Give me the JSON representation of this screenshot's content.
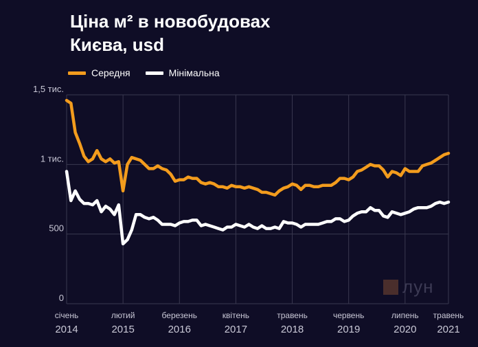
{
  "title_line1": "Ціна м² в новобудовах",
  "title_line2": "Києва, usd",
  "watermark": "лун",
  "colors": {
    "average": "#f39c1d",
    "minimum": "#ffffff",
    "background": "#0f0d26",
    "grid": "#3a3950"
  },
  "chart_data": {
    "type": "line",
    "title": "Ціна м² в новобудовах Києва, usd",
    "y_ticks": [
      {
        "value": 0,
        "label": "0"
      },
      {
        "value": 500,
        "label": "500"
      },
      {
        "value": 1000,
        "label": "1 тис."
      },
      {
        "value": 1500,
        "label": "1,5 тис."
      }
    ],
    "ylim": [
      0,
      1500
    ],
    "x_range": [
      "2014-01",
      "2021-05"
    ],
    "x_ticks": [
      {
        "month": "січень",
        "year": "2014",
        "x": "2014-01"
      },
      {
        "month": "лютий",
        "year": "2015",
        "x": "2015-02"
      },
      {
        "month": "березень",
        "year": "2016",
        "x": "2016-03"
      },
      {
        "month": "квітень",
        "year": "2017",
        "x": "2017-04"
      },
      {
        "month": "травень",
        "year": "2018",
        "x": "2018-05"
      },
      {
        "month": "червень",
        "year": "2019",
        "x": "2019-06"
      },
      {
        "month": "липень",
        "year": "2020",
        "x": "2020-07"
      },
      {
        "month": "травень",
        "year": "2021",
        "x": "2021-05"
      }
    ],
    "grid": true,
    "legend": "top-left",
    "series": [
      {
        "name": "Середня",
        "color": "#f39c1d",
        "points": [
          [
            "2014-01",
            1460
          ],
          [
            "2014-02",
            1440
          ],
          [
            "2014-03",
            1230
          ],
          [
            "2014-04",
            1150
          ],
          [
            "2014-05",
            1060
          ],
          [
            "2014-06",
            1020
          ],
          [
            "2014-07",
            1040
          ],
          [
            "2014-08",
            1100
          ],
          [
            "2014-09",
            1040
          ],
          [
            "2014-10",
            1020
          ],
          [
            "2014-11",
            1040
          ],
          [
            "2014-12",
            1010
          ],
          [
            "2015-01",
            1020
          ],
          [
            "2015-02",
            810
          ],
          [
            "2015-03",
            1000
          ],
          [
            "2015-04",
            1050
          ],
          [
            "2015-05",
            1040
          ],
          [
            "2015-06",
            1030
          ],
          [
            "2015-07",
            1000
          ],
          [
            "2015-08",
            970
          ],
          [
            "2015-09",
            970
          ],
          [
            "2015-10",
            990
          ],
          [
            "2015-11",
            970
          ],
          [
            "2015-12",
            960
          ],
          [
            "2016-01",
            930
          ],
          [
            "2016-02",
            880
          ],
          [
            "2016-03",
            890
          ],
          [
            "2016-04",
            890
          ],
          [
            "2016-05",
            910
          ],
          [
            "2016-06",
            900
          ],
          [
            "2016-07",
            900
          ],
          [
            "2016-08",
            870
          ],
          [
            "2016-09",
            860
          ],
          [
            "2016-10",
            870
          ],
          [
            "2016-11",
            860
          ],
          [
            "2016-12",
            840
          ],
          [
            "2017-01",
            840
          ],
          [
            "2017-02",
            830
          ],
          [
            "2017-03",
            850
          ],
          [
            "2017-04",
            840
          ],
          [
            "2017-05",
            840
          ],
          [
            "2017-06",
            830
          ],
          [
            "2017-07",
            840
          ],
          [
            "2017-08",
            830
          ],
          [
            "2017-09",
            820
          ],
          [
            "2017-10",
            800
          ],
          [
            "2017-11",
            800
          ],
          [
            "2017-12",
            790
          ],
          [
            "2018-01",
            780
          ],
          [
            "2018-02",
            810
          ],
          [
            "2018-03",
            830
          ],
          [
            "2018-04",
            840
          ],
          [
            "2018-05",
            860
          ],
          [
            "2018-06",
            850
          ],
          [
            "2018-07",
            820
          ],
          [
            "2018-08",
            850
          ],
          [
            "2018-09",
            850
          ],
          [
            "2018-10",
            840
          ],
          [
            "2018-11",
            840
          ],
          [
            "2018-12",
            850
          ],
          [
            "2019-01",
            850
          ],
          [
            "2019-02",
            850
          ],
          [
            "2019-03",
            870
          ],
          [
            "2019-04",
            900
          ],
          [
            "2019-05",
            900
          ],
          [
            "2019-06",
            890
          ],
          [
            "2019-07",
            910
          ],
          [
            "2019-08",
            950
          ],
          [
            "2019-09",
            960
          ],
          [
            "2019-10",
            980
          ],
          [
            "2019-11",
            1000
          ],
          [
            "2019-12",
            990
          ],
          [
            "2020-01",
            990
          ],
          [
            "2020-02",
            960
          ],
          [
            "2020-03",
            910
          ],
          [
            "2020-04",
            950
          ],
          [
            "2020-05",
            940
          ],
          [
            "2020-06",
            920
          ],
          [
            "2020-07",
            970
          ],
          [
            "2020-08",
            950
          ],
          [
            "2020-09",
            950
          ],
          [
            "2020-10",
            950
          ],
          [
            "2020-11",
            990
          ],
          [
            "2020-12",
            1000
          ],
          [
            "2021-01",
            1010
          ],
          [
            "2021-02",
            1030
          ],
          [
            "2021-03",
            1050
          ],
          [
            "2021-04",
            1070
          ],
          [
            "2021-05",
            1080
          ]
        ]
      },
      {
        "name": "Мінімальна",
        "color": "#ffffff",
        "points": [
          [
            "2014-01",
            950
          ],
          [
            "2014-02",
            740
          ],
          [
            "2014-03",
            810
          ],
          [
            "2014-04",
            750
          ],
          [
            "2014-05",
            720
          ],
          [
            "2014-06",
            720
          ],
          [
            "2014-07",
            710
          ],
          [
            "2014-08",
            740
          ],
          [
            "2014-09",
            660
          ],
          [
            "2014-10",
            700
          ],
          [
            "2014-11",
            680
          ],
          [
            "2014-12",
            640
          ],
          [
            "2015-01",
            710
          ],
          [
            "2015-02",
            430
          ],
          [
            "2015-03",
            460
          ],
          [
            "2015-04",
            530
          ],
          [
            "2015-05",
            640
          ],
          [
            "2015-06",
            640
          ],
          [
            "2015-07",
            620
          ],
          [
            "2015-08",
            610
          ],
          [
            "2015-09",
            620
          ],
          [
            "2015-10",
            600
          ],
          [
            "2015-11",
            570
          ],
          [
            "2015-12",
            570
          ],
          [
            "2016-01",
            570
          ],
          [
            "2016-02",
            560
          ],
          [
            "2016-03",
            580
          ],
          [
            "2016-04",
            590
          ],
          [
            "2016-05",
            590
          ],
          [
            "2016-06",
            600
          ],
          [
            "2016-07",
            600
          ],
          [
            "2016-08",
            560
          ],
          [
            "2016-09",
            570
          ],
          [
            "2016-10",
            560
          ],
          [
            "2016-11",
            550
          ],
          [
            "2016-12",
            540
          ],
          [
            "2017-01",
            530
          ],
          [
            "2017-02",
            550
          ],
          [
            "2017-03",
            550
          ],
          [
            "2017-04",
            570
          ],
          [
            "2017-05",
            560
          ],
          [
            "2017-06",
            550
          ],
          [
            "2017-07",
            570
          ],
          [
            "2017-08",
            550
          ],
          [
            "2017-09",
            540
          ],
          [
            "2017-10",
            560
          ],
          [
            "2017-11",
            540
          ],
          [
            "2017-12",
            540
          ],
          [
            "2018-01",
            550
          ],
          [
            "2018-02",
            540
          ],
          [
            "2018-03",
            590
          ],
          [
            "2018-04",
            580
          ],
          [
            "2018-05",
            580
          ],
          [
            "2018-06",
            570
          ],
          [
            "2018-07",
            550
          ],
          [
            "2018-08",
            570
          ],
          [
            "2018-09",
            570
          ],
          [
            "2018-10",
            570
          ],
          [
            "2018-11",
            570
          ],
          [
            "2018-12",
            580
          ],
          [
            "2019-01",
            590
          ],
          [
            "2019-02",
            590
          ],
          [
            "2019-03",
            610
          ],
          [
            "2019-04",
            610
          ],
          [
            "2019-05",
            590
          ],
          [
            "2019-06",
            600
          ],
          [
            "2019-07",
            630
          ],
          [
            "2019-08",
            650
          ],
          [
            "2019-09",
            660
          ],
          [
            "2019-10",
            660
          ],
          [
            "2019-11",
            690
          ],
          [
            "2019-12",
            670
          ],
          [
            "2020-01",
            670
          ],
          [
            "2020-02",
            630
          ],
          [
            "2020-03",
            620
          ],
          [
            "2020-04",
            660
          ],
          [
            "2020-05",
            650
          ],
          [
            "2020-06",
            640
          ],
          [
            "2020-07",
            650
          ],
          [
            "2020-08",
            660
          ],
          [
            "2020-09",
            680
          ],
          [
            "2020-10",
            690
          ],
          [
            "2020-11",
            690
          ],
          [
            "2020-12",
            690
          ],
          [
            "2021-01",
            700
          ],
          [
            "2021-02",
            720
          ],
          [
            "2021-03",
            730
          ],
          [
            "2021-04",
            720
          ],
          [
            "2021-05",
            730
          ]
        ]
      }
    ]
  }
}
